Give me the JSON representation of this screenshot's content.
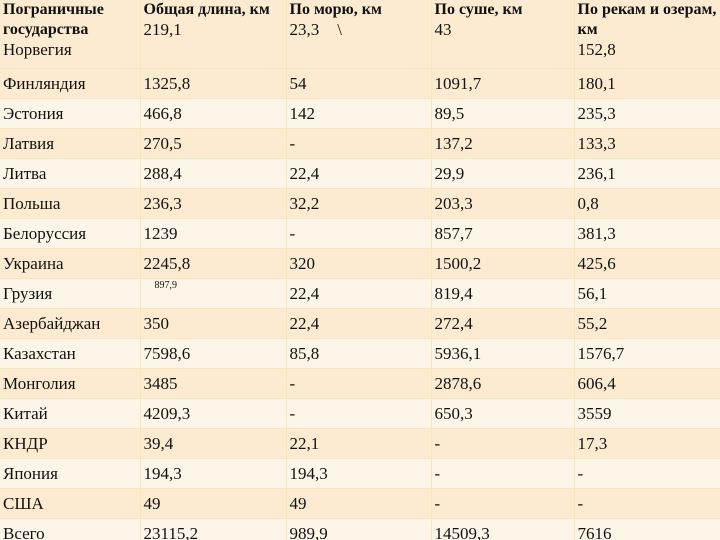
{
  "table": {
    "headers": {
      "country": "Пограничные государства",
      "total": "Общая длина, км",
      "sea": "По морю, км",
      "land": "По суше, км",
      "rivers": "По рекам и озерам, км"
    },
    "first_row": {
      "country": "Норвегия",
      "total": "219,1",
      "sea": "23,3",
      "sea_mark": "\\",
      "land": "43",
      "rivers": "152,8"
    },
    "rows": [
      {
        "country": "Финляндия",
        "total": "1325,8",
        "sea": "54",
        "land": "1091,7",
        "rivers": "180,1"
      },
      {
        "country": "Эстония",
        "total": "466,8",
        "sea": "142",
        "land": "89,5",
        "rivers": "235,3"
      },
      {
        "country": "Латвия",
        "total": "270,5",
        "sea": "-",
        "land": "137,2",
        "rivers": "133,3"
      },
      {
        "country": "Литва",
        "total": "288,4",
        "sea": "22,4",
        "land": "29,9",
        "rivers": "236,1"
      },
      {
        "country": "Польша",
        "total": "236,3",
        "sea": "32,2",
        "land": "203,3",
        "rivers": "0,8"
      },
      {
        "country": "Белоруссия",
        "total": "1239",
        "sea": "-",
        "land": "857,7",
        "rivers": "381,3"
      },
      {
        "country": "Украина",
        "total": "2245,8",
        "sea": "320",
        "land": "1500,2",
        "rivers": "425,6"
      },
      {
        "country": "Грузия",
        "total": "897,9",
        "sea": "22,4",
        "land": "819,4",
        "rivers": "56,1"
      },
      {
        "country": "Азербайджан",
        "total": "350",
        "sea": "22,4",
        "land": "272,4",
        "rivers": "55,2"
      },
      {
        "country": "Казахстан",
        "total": "7598,6",
        "sea": "85,8",
        "land": "5936,1",
        "rivers": "1576,7"
      },
      {
        "country": "Монголия",
        "total": "3485",
        "sea": "-",
        "land": "2878,6",
        "rivers": "606,4"
      },
      {
        "country": "Китай",
        "total": "4209,3",
        "sea": "-",
        "land": "650,3",
        "rivers": "3559"
      },
      {
        "country": "КНДР",
        "total": "39,4",
        "sea": "22,1",
        "land": "-",
        "rivers": "17,3"
      },
      {
        "country": "Япония",
        "total": "194,3",
        "sea": "194,3",
        "land": "-",
        "rivers": "-"
      },
      {
        "country": "США",
        "total": "49",
        "sea": "49",
        "land": "-",
        "rivers": "-"
      },
      {
        "country": "Всего",
        "total": "23115,2",
        "sea": "989,9",
        "land": "14509,3",
        "rivers": "7616"
      }
    ]
  }
}
